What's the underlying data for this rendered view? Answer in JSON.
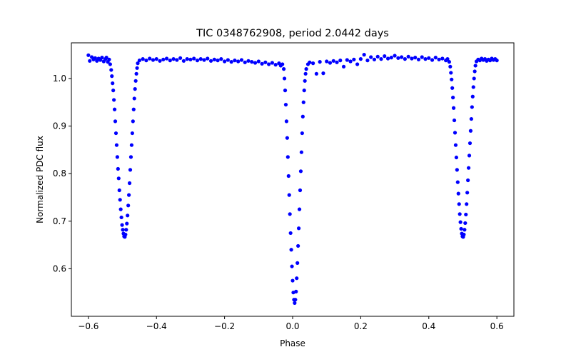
{
  "chart_data": {
    "type": "scatter",
    "title": "TIC 0348762908, period 2.0442 days",
    "xlabel": "Phase",
    "ylabel": "Normalized PDC flux",
    "xlim": [
      -0.65,
      0.65
    ],
    "ylim": [
      0.5,
      1.075
    ],
    "xticks": [
      -0.6,
      -0.4,
      -0.2,
      0.0,
      0.2,
      0.4,
      0.6
    ],
    "xtick_labels": [
      "−0.6",
      "−0.4",
      "−0.2",
      "0.0",
      "0.2",
      "0.4",
      "0.6"
    ],
    "yticks": [
      0.6,
      0.7,
      0.8,
      0.9,
      1.0
    ],
    "ytick_labels": [
      "0.6",
      "0.7",
      "0.8",
      "0.9",
      "1.0"
    ],
    "grid": false,
    "marker_color": "#0000ff",
    "series": [
      {
        "points": [
          [
            -0.6,
            1.049
          ],
          [
            -0.596,
            1.037
          ],
          [
            -0.59,
            1.045
          ],
          [
            -0.585,
            1.04
          ],
          [
            -0.58,
            1.043
          ],
          [
            -0.575,
            1.037
          ],
          [
            -0.57,
            1.042
          ],
          [
            -0.565,
            1.039
          ],
          [
            -0.56,
            1.044
          ],
          [
            -0.555,
            1.036
          ],
          [
            -0.55,
            1.041
          ],
          [
            -0.547,
            1.044
          ],
          [
            -0.543,
            1.035
          ],
          [
            -0.539,
            1.04
          ],
          [
            -0.536,
            1.03
          ],
          [
            -0.533,
            1.018
          ],
          [
            -0.531,
            1.005
          ],
          [
            -0.529,
            0.99
          ],
          [
            -0.527,
            0.975
          ],
          [
            -0.525,
            0.955
          ],
          [
            -0.523,
            0.935
          ],
          [
            -0.521,
            0.91
          ],
          [
            -0.519,
            0.885
          ],
          [
            -0.517,
            0.86
          ],
          [
            -0.515,
            0.835
          ],
          [
            -0.513,
            0.81
          ],
          [
            -0.511,
            0.79
          ],
          [
            -0.509,
            0.765
          ],
          [
            -0.507,
            0.745
          ],
          [
            -0.505,
            0.725
          ],
          [
            -0.503,
            0.708
          ],
          [
            -0.501,
            0.692
          ],
          [
            -0.499,
            0.682
          ],
          [
            -0.497,
            0.674
          ],
          [
            -0.495,
            0.668
          ],
          [
            -0.493,
            0.667
          ],
          [
            -0.491,
            0.672
          ],
          [
            -0.489,
            0.682
          ],
          [
            -0.487,
            0.695
          ],
          [
            -0.485,
            0.712
          ],
          [
            -0.483,
            0.733
          ],
          [
            -0.481,
            0.755
          ],
          [
            -0.479,
            0.78
          ],
          [
            -0.477,
            0.808
          ],
          [
            -0.475,
            0.835
          ],
          [
            -0.473,
            0.86
          ],
          [
            -0.471,
            0.885
          ],
          [
            -0.469,
            0.91
          ],
          [
            -0.467,
            0.935
          ],
          [
            -0.465,
            0.958
          ],
          [
            -0.463,
            0.978
          ],
          [
            -0.461,
            0.995
          ],
          [
            -0.459,
            1.01
          ],
          [
            -0.457,
            1.022
          ],
          [
            -0.455,
            1.032
          ],
          [
            -0.45,
            1.038
          ],
          [
            -0.44,
            1.041
          ],
          [
            -0.43,
            1.038
          ],
          [
            -0.42,
            1.042
          ],
          [
            -0.41,
            1.039
          ],
          [
            -0.4,
            1.041
          ],
          [
            -0.39,
            1.037
          ],
          [
            -0.38,
            1.04
          ],
          [
            -0.37,
            1.042
          ],
          [
            -0.36,
            1.038
          ],
          [
            -0.35,
            1.041
          ],
          [
            -0.34,
            1.039
          ],
          [
            -0.33,
            1.043
          ],
          [
            -0.32,
            1.037
          ],
          [
            -0.31,
            1.041
          ],
          [
            -0.3,
            1.04
          ],
          [
            -0.29,
            1.042
          ],
          [
            -0.28,
            1.038
          ],
          [
            -0.27,
            1.041
          ],
          [
            -0.26,
            1.039
          ],
          [
            -0.25,
            1.042
          ],
          [
            -0.24,
            1.037
          ],
          [
            -0.23,
            1.04
          ],
          [
            -0.22,
            1.038
          ],
          [
            -0.21,
            1.041
          ],
          [
            -0.2,
            1.036
          ],
          [
            -0.19,
            1.039
          ],
          [
            -0.18,
            1.035
          ],
          [
            -0.17,
            1.038
          ],
          [
            -0.16,
            1.036
          ],
          [
            -0.15,
            1.039
          ],
          [
            -0.14,
            1.034
          ],
          [
            -0.13,
            1.037
          ],
          [
            -0.12,
            1.035
          ],
          [
            -0.11,
            1.033
          ],
          [
            -0.1,
            1.036
          ],
          [
            -0.09,
            1.031
          ],
          [
            -0.08,
            1.034
          ],
          [
            -0.07,
            1.03
          ],
          [
            -0.06,
            1.033
          ],
          [
            -0.05,
            1.029
          ],
          [
            -0.04,
            1.032
          ],
          [
            -0.035,
            1.027
          ],
          [
            -0.03,
            1.03
          ],
          [
            -0.026,
            1.02
          ],
          [
            -0.024,
            1.0
          ],
          [
            -0.022,
            0.975
          ],
          [
            -0.02,
            0.945
          ],
          [
            -0.018,
            0.91
          ],
          [
            -0.016,
            0.875
          ],
          [
            -0.014,
            0.835
          ],
          [
            -0.012,
            0.795
          ],
          [
            -0.01,
            0.755
          ],
          [
            -0.008,
            0.715
          ],
          [
            -0.006,
            0.675
          ],
          [
            -0.004,
            0.64
          ],
          [
            -0.002,
            0.605
          ],
          [
            0.0,
            0.575
          ],
          [
            0.002,
            0.55
          ],
          [
            0.004,
            0.535
          ],
          [
            0.006,
            0.528
          ],
          [
            0.008,
            0.535
          ],
          [
            0.01,
            0.552
          ],
          [
            0.012,
            0.58
          ],
          [
            0.014,
            0.612
          ],
          [
            0.016,
            0.648
          ],
          [
            0.018,
            0.685
          ],
          [
            0.02,
            0.725
          ],
          [
            0.022,
            0.765
          ],
          [
            0.024,
            0.805
          ],
          [
            0.026,
            0.845
          ],
          [
            0.028,
            0.885
          ],
          [
            0.03,
            0.92
          ],
          [
            0.032,
            0.95
          ],
          [
            0.034,
            0.975
          ],
          [
            0.036,
            0.995
          ],
          [
            0.038,
            1.01
          ],
          [
            0.04,
            1.02
          ],
          [
            0.045,
            1.03
          ],
          [
            0.05,
            1.034
          ],
          [
            0.06,
            1.032
          ],
          [
            0.07,
            1.01
          ],
          [
            0.08,
            1.035
          ],
          [
            0.09,
            1.011
          ],
          [
            0.1,
            1.036
          ],
          [
            0.11,
            1.033
          ],
          [
            0.12,
            1.037
          ],
          [
            0.13,
            1.034
          ],
          [
            0.14,
            1.038
          ],
          [
            0.15,
            1.025
          ],
          [
            0.16,
            1.039
          ],
          [
            0.17,
            1.036
          ],
          [
            0.18,
            1.04
          ],
          [
            0.19,
            1.03
          ],
          [
            0.2,
            1.041
          ],
          [
            0.21,
            1.05
          ],
          [
            0.22,
            1.038
          ],
          [
            0.23,
            1.045
          ],
          [
            0.24,
            1.04
          ],
          [
            0.25,
            1.046
          ],
          [
            0.26,
            1.041
          ],
          [
            0.27,
            1.047
          ],
          [
            0.28,
            1.042
          ],
          [
            0.29,
            1.044
          ],
          [
            0.3,
            1.048
          ],
          [
            0.31,
            1.043
          ],
          [
            0.32,
            1.045
          ],
          [
            0.33,
            1.041
          ],
          [
            0.34,
            1.046
          ],
          [
            0.35,
            1.042
          ],
          [
            0.36,
            1.044
          ],
          [
            0.37,
            1.04
          ],
          [
            0.38,
            1.045
          ],
          [
            0.39,
            1.041
          ],
          [
            0.4,
            1.043
          ],
          [
            0.41,
            1.039
          ],
          [
            0.42,
            1.044
          ],
          [
            0.43,
            1.04
          ],
          [
            0.44,
            1.042
          ],
          [
            0.45,
            1.038
          ],
          [
            0.455,
            1.041
          ],
          [
            0.46,
            1.035
          ],
          [
            0.463,
            1.025
          ],
          [
            0.465,
            1.012
          ],
          [
            0.467,
            0.998
          ],
          [
            0.469,
            0.98
          ],
          [
            0.471,
            0.96
          ],
          [
            0.473,
            0.938
          ],
          [
            0.475,
            0.912
          ],
          [
            0.477,
            0.886
          ],
          [
            0.479,
            0.86
          ],
          [
            0.481,
            0.834
          ],
          [
            0.483,
            0.808
          ],
          [
            0.485,
            0.782
          ],
          [
            0.487,
            0.758
          ],
          [
            0.489,
            0.736
          ],
          [
            0.491,
            0.715
          ],
          [
            0.493,
            0.698
          ],
          [
            0.495,
            0.684
          ],
          [
            0.497,
            0.674
          ],
          [
            0.499,
            0.668
          ],
          [
            0.501,
            0.667
          ],
          [
            0.503,
            0.672
          ],
          [
            0.505,
            0.682
          ],
          [
            0.507,
            0.696
          ],
          [
            0.509,
            0.714
          ],
          [
            0.511,
            0.736
          ],
          [
            0.513,
            0.76
          ],
          [
            0.515,
            0.786
          ],
          [
            0.517,
            0.812
          ],
          [
            0.519,
            0.838
          ],
          [
            0.521,
            0.864
          ],
          [
            0.523,
            0.89
          ],
          [
            0.525,
            0.915
          ],
          [
            0.527,
            0.94
          ],
          [
            0.529,
            0.962
          ],
          [
            0.531,
            0.982
          ],
          [
            0.533,
            1.0
          ],
          [
            0.535,
            1.015
          ],
          [
            0.537,
            1.027
          ],
          [
            0.54,
            1.036
          ],
          [
            0.545,
            1.04
          ],
          [
            0.55,
            1.038
          ],
          [
            0.555,
            1.042
          ],
          [
            0.56,
            1.039
          ],
          [
            0.565,
            1.041
          ],
          [
            0.57,
            1.037
          ],
          [
            0.575,
            1.04
          ],
          [
            0.58,
            1.038
          ],
          [
            0.585,
            1.042
          ],
          [
            0.59,
            1.039
          ],
          [
            0.595,
            1.041
          ],
          [
            0.6,
            1.038
          ]
        ]
      }
    ]
  }
}
